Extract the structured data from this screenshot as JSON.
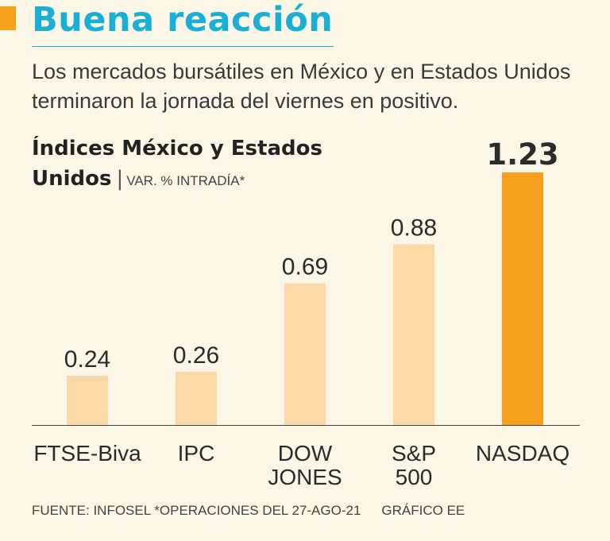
{
  "header": {
    "title": "Buena reacción",
    "subtitle": "Los mercados bursátiles en México y en Estados Unidos terminaron la jornada del viernes en positivo."
  },
  "chart_title": {
    "main": "Índices México y Estados Unidos",
    "separator": "|",
    "unit": "VAR. % INTRADÍA*"
  },
  "chart_data": {
    "type": "bar",
    "title": "Índices México y Estados Unidos",
    "ylabel": "VAR. % INTRADÍA*",
    "xlabel": "",
    "categories": [
      [
        "FTSE-Biva"
      ],
      [
        "IPC"
      ],
      [
        "DOW",
        "JONES"
      ],
      [
        "S&P",
        "500"
      ],
      [
        "NASDAQ"
      ]
    ],
    "values": [
      0.24,
      0.26,
      0.69,
      0.88,
      1.23
    ],
    "value_labels": [
      "0.24",
      "0.26",
      "0.69",
      "0.88",
      "1.23"
    ],
    "highlight_index": 4,
    "ylim": [
      0,
      1.23
    ],
    "grid": false
  },
  "colors": {
    "background": "#fbf6e6",
    "title": "#1ab0d6",
    "accent": "#f7a020",
    "bar": "#fcd8a6",
    "bar_highlight": "#f7a020",
    "text": "#2b2b2b"
  },
  "footer": {
    "source": "FUENTE: INFOSEL *OPERACIONES DEL 27-AGO-21",
    "credit": "GRÁFICO EE"
  }
}
